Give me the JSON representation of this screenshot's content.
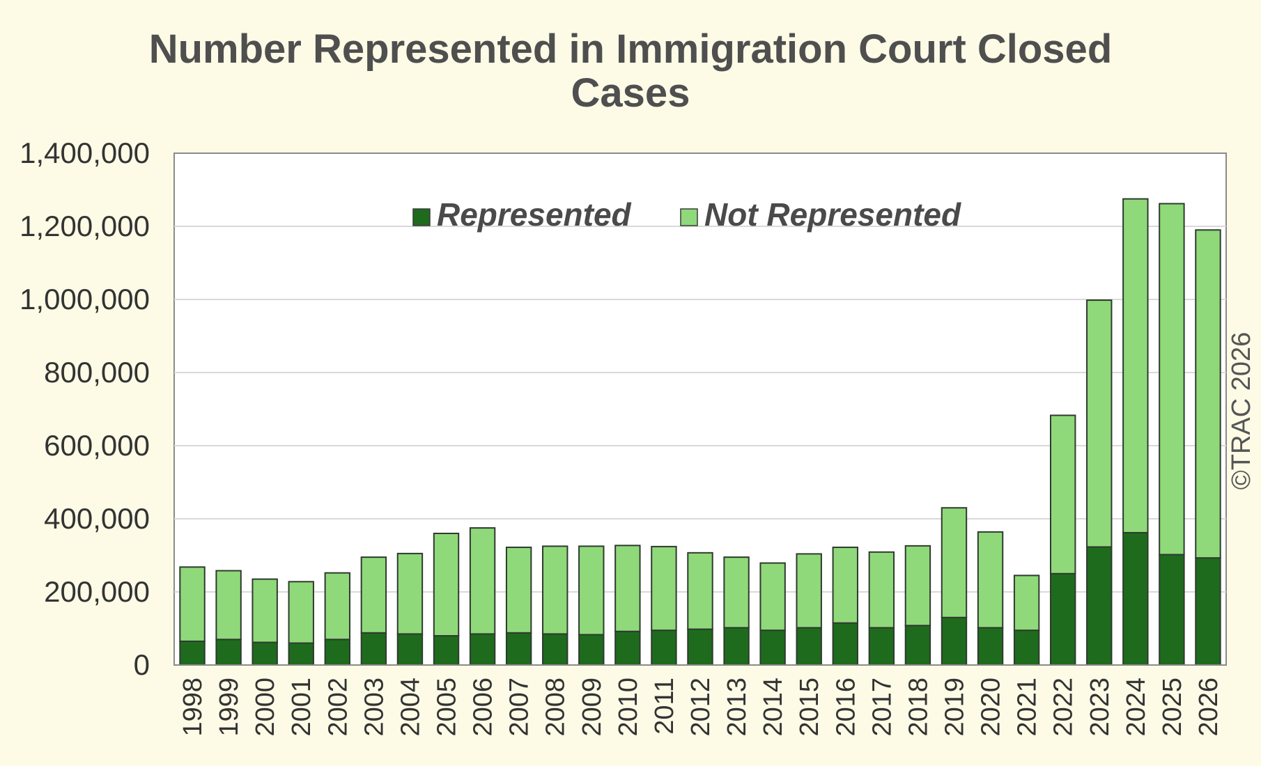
{
  "chart_data": {
    "type": "bar",
    "stacked": true,
    "title_lines": [
      "Number Represented in Immigration Court Closed",
      "Cases"
    ],
    "categories": [
      "1998",
      "1999",
      "2000",
      "2001",
      "2002",
      "2003",
      "2004",
      "2005",
      "2006",
      "2007",
      "2008",
      "2009",
      "2010",
      "2011",
      "2012",
      "2013",
      "2014",
      "2015",
      "2016",
      "2017",
      "2018",
      "2019",
      "2020",
      "2021",
      "2022",
      "2023",
      "2024",
      "2025",
      "2026"
    ],
    "series": [
      {
        "name": "Represented",
        "color": "#1e6b1e",
        "values": [
          65000,
          70000,
          62000,
          60000,
          70000,
          88000,
          85000,
          80000,
          85000,
          88000,
          85000,
          83000,
          92000,
          95000,
          98000,
          102000,
          95000,
          102000,
          115000,
          102000,
          108000,
          130000,
          102000,
          95000,
          250000,
          323000,
          362000,
          302000,
          293000
        ]
      },
      {
        "name": "Not Represented",
        "color": "#8fd97a",
        "values": [
          203000,
          188000,
          173000,
          168000,
          182000,
          207000,
          220000,
          280000,
          290000,
          234000,
          240000,
          242000,
          235000,
          229000,
          209000,
          193000,
          184000,
          202000,
          207000,
          207000,
          218000,
          300000,
          262000,
          150000,
          433000,
          675000,
          913000,
          960000,
          897000
        ]
      }
    ],
    "ylim": [
      0,
      1400000
    ],
    "yticks": [
      "0",
      "200,000",
      "400,000",
      "600,000",
      "800,000",
      "1,000,000",
      "1,200,000",
      "1,400,000"
    ],
    "legend_position": "top-center",
    "grid": true,
    "credit": "©TRAC 2026"
  }
}
